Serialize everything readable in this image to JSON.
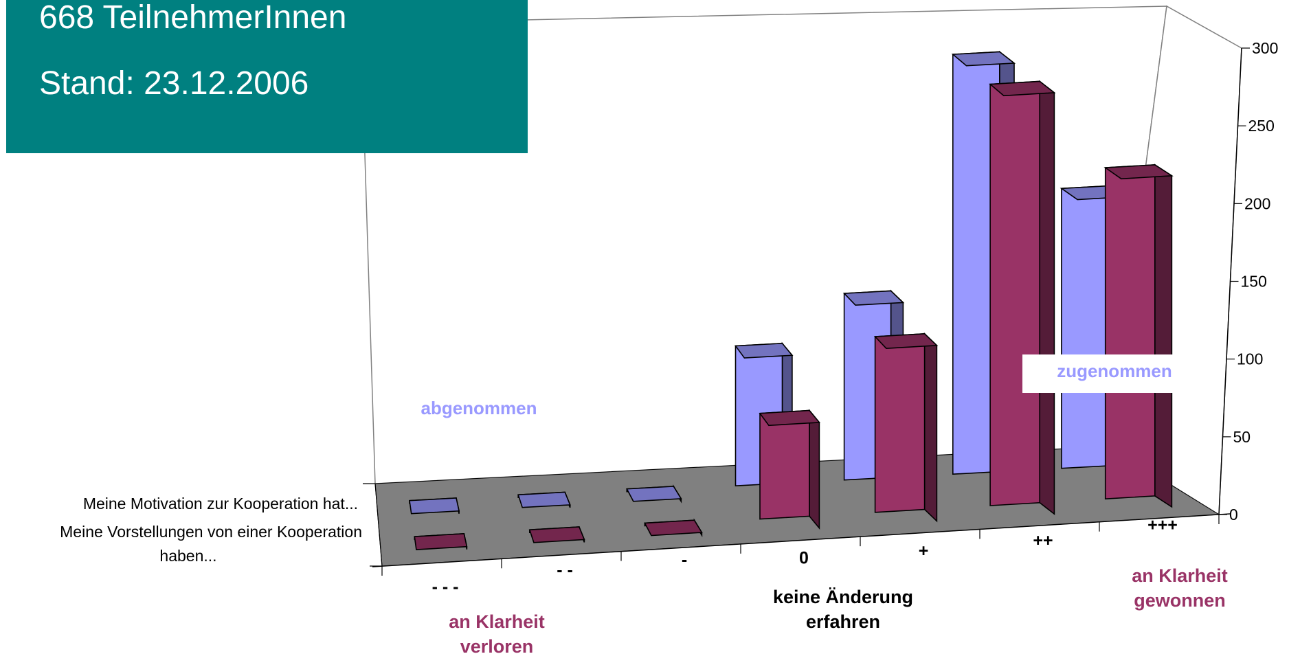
{
  "header": {
    "line1": "668 TeilnehmerInnen",
    "line2": "Stand: 23.12.2006"
  },
  "colors": {
    "header_bg": "#008080",
    "series_front": "#993366",
    "series_back": "#9999ff",
    "floor": "#808080"
  },
  "chart_data": {
    "type": "bar",
    "subtype": "3d-clustered",
    "title": "",
    "categories": [
      "- - -",
      "- -",
      "-",
      "0",
      "+",
      "++",
      "+++"
    ],
    "series": [
      {
        "name": "Meine Motivation zur Kooperation hat...",
        "values": [
          0,
          0,
          0,
          90,
          120,
          270,
          180
        ]
      },
      {
        "name": "Meine Vorstellungen von einer Kooperation haben...",
        "values": [
          0,
          0,
          0,
          68,
          113,
          271,
          213
        ]
      }
    ],
    "yticks": [
      0,
      50,
      100,
      150,
      200,
      250,
      300
    ],
    "ylim": [
      0,
      300
    ],
    "annotations": {
      "decreased": "abgenommen",
      "increased": "zugenommen",
      "lost_line1": "an Klarheit",
      "lost_line2": "verloren",
      "nochange_line1": "keine Änderung",
      "nochange_line2": "erfahren",
      "gained_line1": "an Klarheit",
      "gained_line2": "gewonnen"
    },
    "legend_position": "left"
  }
}
